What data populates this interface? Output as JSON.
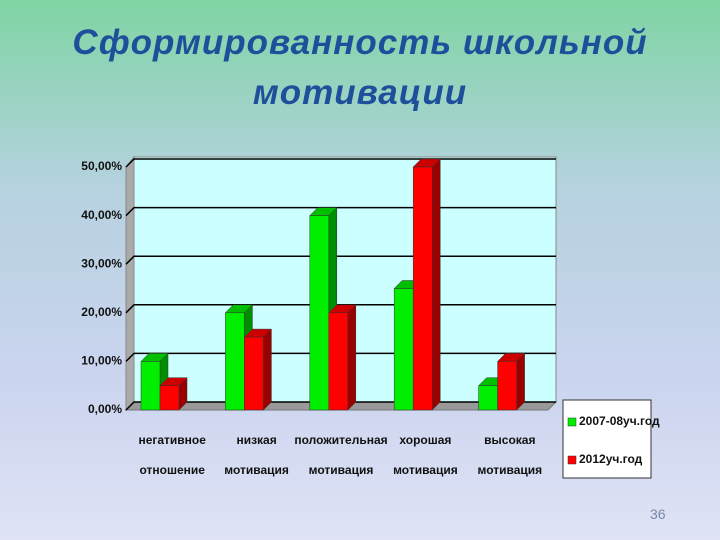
{
  "chart_data": {
    "type": "bar3d",
    "title": "Сформированность школьной мотивации",
    "categories": [
      "негативное отношение",
      "низкая мотивация",
      "положительная мотивация",
      "хорошая мотивация",
      "высокая мотивация"
    ],
    "series": [
      {
        "name": "2007-08уч.год",
        "color": "#00ee00",
        "values": [
          10,
          20,
          40,
          25,
          5
        ]
      },
      {
        "name": "2012уч.год",
        "color": "#ff0000",
        "values": [
          5,
          15,
          20,
          50,
          10
        ]
      }
    ],
    "ylim": [
      0,
      50
    ],
    "yticks": [
      {
        "value": 0,
        "label": "0,00%"
      },
      {
        "value": 10,
        "label": "10,00%"
      },
      {
        "value": 20,
        "label": "20,00%"
      },
      {
        "value": 30,
        "label": "30,00%"
      },
      {
        "value": 40,
        "label": "40,00%"
      },
      {
        "value": 50,
        "label": "50,00%"
      }
    ],
    "grid": true,
    "legend": "right"
  },
  "page_number": "36"
}
